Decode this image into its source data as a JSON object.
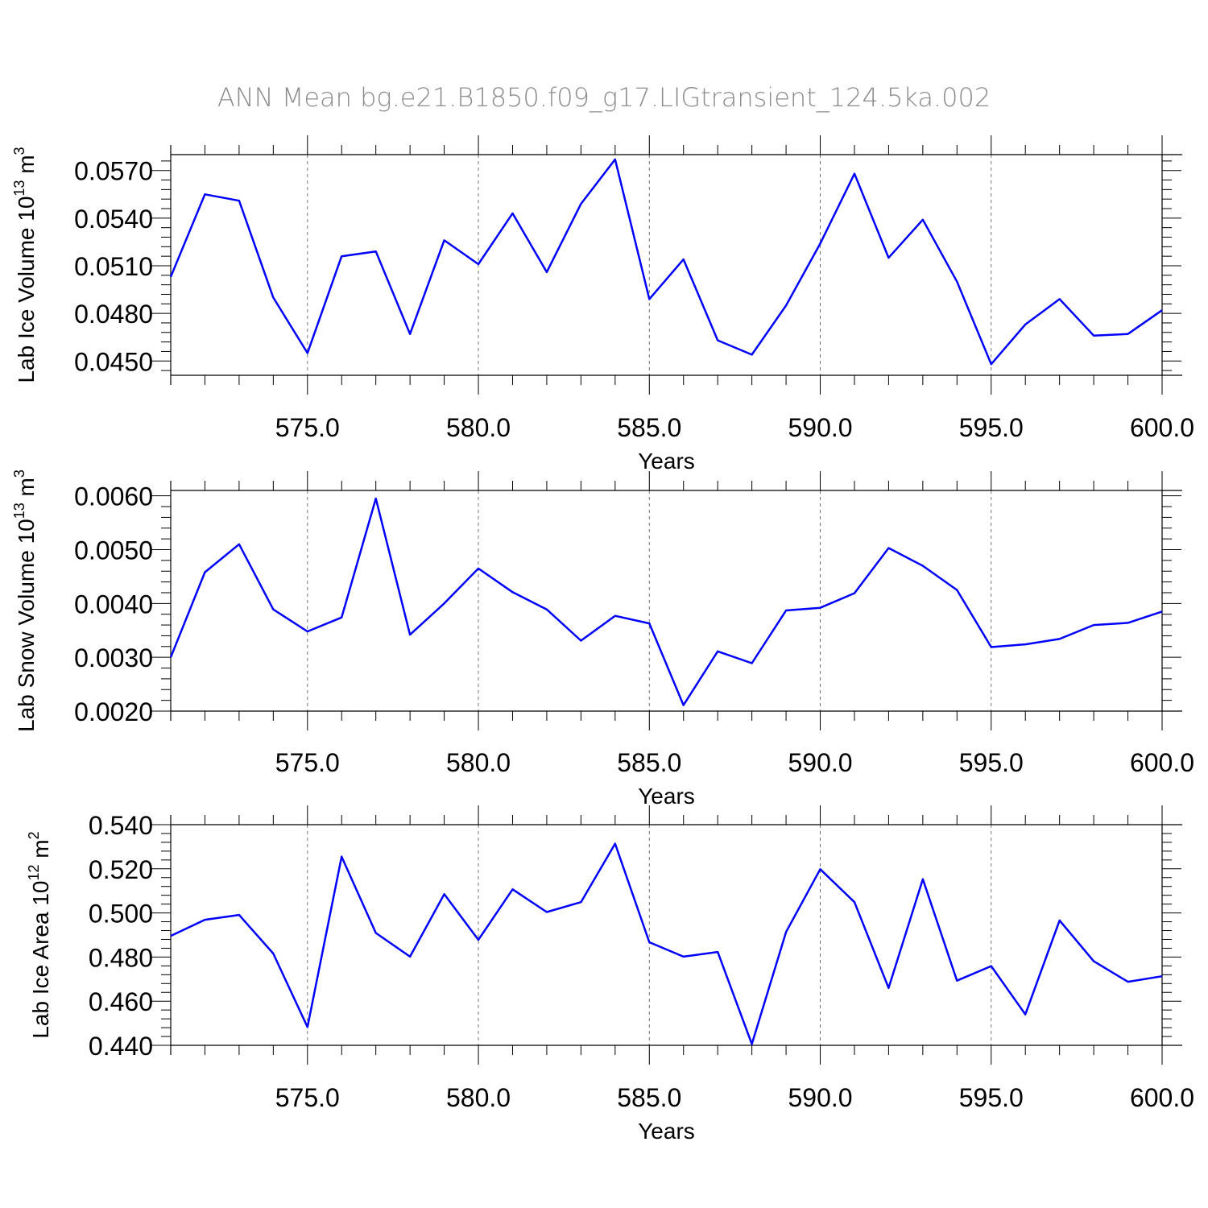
{
  "figure": {
    "title": "ANN Mean bg.e21.B1850.f09_g17.LIGtransient_124.5ka.002"
  },
  "colors": {
    "series": "#0000ff",
    "grid": "#777777",
    "title": "#8c8c8c"
  },
  "chart_data": [
    {
      "type": "line",
      "ylabel": "Lab Ice Volume 10",
      "ylabel_sup": "13",
      "ylabel_unit": " m",
      "ylabel_unit_sup": "3",
      "xlabel": "Years",
      "xlim": [
        571,
        600
      ],
      "ylim": [
        0.0441,
        0.058
      ],
      "xticks": [
        575,
        580,
        585,
        590,
        595,
        600
      ],
      "xtick_labels": [
        "575.0",
        "580.0",
        "585.0",
        "590.0",
        "595.0",
        "600.0"
      ],
      "yticks": [
        0.045,
        0.048,
        0.051,
        0.054,
        0.057
      ],
      "ytick_labels": [
        "0.0450",
        "0.0480",
        "0.0510",
        "0.0540",
        "0.0570"
      ],
      "grid": "vertical dashed at major x ticks",
      "series": [
        {
          "x": [
            571,
            572,
            573,
            574,
            575,
            576,
            577,
            578,
            579,
            580,
            581,
            582,
            583,
            584,
            585,
            586,
            587,
            588,
            589,
            590,
            591,
            592,
            593,
            594,
            595,
            596,
            597,
            598,
            599,
            600
          ],
          "values": [
            0.0503,
            0.0555,
            0.0551,
            0.049,
            0.0455,
            0.0516,
            0.0519,
            0.0467,
            0.0526,
            0.0511,
            0.0543,
            0.0506,
            0.0549,
            0.0577,
            0.0489,
            0.0514,
            0.0463,
            0.0454,
            0.0485,
            0.0524,
            0.0568,
            0.0515,
            0.0539,
            0.05,
            0.0448,
            0.0473,
            0.0489,
            0.0466,
            0.0467,
            0.0482
          ]
        }
      ]
    },
    {
      "type": "line",
      "ylabel": "Lab Snow Volume 10",
      "ylabel_sup": "13",
      "ylabel_unit": " m",
      "ylabel_unit_sup": "3",
      "xlabel": "Years",
      "xlim": [
        571,
        600
      ],
      "ylim": [
        0.002,
        0.0061
      ],
      "xticks": [
        575,
        580,
        585,
        590,
        595,
        600
      ],
      "xtick_labels": [
        "575.0",
        "580.0",
        "585.0",
        "590.0",
        "595.0",
        "600.0"
      ],
      "yticks": [
        0.002,
        0.003,
        0.004,
        0.005,
        0.006
      ],
      "ytick_labels": [
        "0.0020",
        "0.0030",
        "0.0040",
        "0.0050",
        "0.0060"
      ],
      "grid": "vertical dashed at major x ticks",
      "series": [
        {
          "x": [
            571,
            572,
            573,
            574,
            575,
            576,
            577,
            578,
            579,
            580,
            581,
            582,
            583,
            584,
            585,
            586,
            587,
            588,
            589,
            590,
            591,
            592,
            593,
            594,
            595,
            596,
            597,
            598,
            599,
            600
          ],
          "values": [
            0.003,
            0.00458,
            0.0051,
            0.00389,
            0.00348,
            0.00374,
            0.00595,
            0.00342,
            0.004,
            0.00465,
            0.00421,
            0.00389,
            0.00331,
            0.00377,
            0.00363,
            0.00211,
            0.00311,
            0.00289,
            0.00387,
            0.00392,
            0.00419,
            0.00503,
            0.0047,
            0.00425,
            0.00319,
            0.00324,
            0.00334,
            0.0036,
            0.00364,
            0.00385
          ]
        }
      ]
    },
    {
      "type": "line",
      "ylabel": "Lab Ice Area 10",
      "ylabel_sup": "12",
      "ylabel_unit": " m",
      "ylabel_unit_sup": "2",
      "xlabel": "Years",
      "xlim": [
        571,
        600
      ],
      "ylim": [
        0.44,
        0.54
      ],
      "xticks": [
        575,
        580,
        585,
        590,
        595,
        600
      ],
      "xtick_labels": [
        "575.0",
        "580.0",
        "585.0",
        "590.0",
        "595.0",
        "600.0"
      ],
      "yticks": [
        0.44,
        0.46,
        0.48,
        0.5,
        0.52,
        0.54
      ],
      "ytick_labels": [
        "0.440",
        "0.460",
        "0.480",
        "0.500",
        "0.520",
        "0.540"
      ],
      "grid": "vertical dashed at major x ticks",
      "series": [
        {
          "x": [
            571,
            572,
            573,
            574,
            575,
            576,
            577,
            578,
            579,
            580,
            581,
            582,
            583,
            584,
            585,
            586,
            587,
            588,
            589,
            590,
            591,
            592,
            593,
            594,
            595,
            596,
            597,
            598,
            599,
            600
          ],
          "values": [
            0.4896,
            0.4969,
            0.4991,
            0.4816,
            0.4483,
            0.5255,
            0.4909,
            0.4802,
            0.5085,
            0.4878,
            0.5107,
            0.5004,
            0.5049,
            0.5314,
            0.4867,
            0.4802,
            0.4823,
            0.4406,
            0.4914,
            0.5198,
            0.5049,
            0.466,
            0.5153,
            0.4693,
            0.4759,
            0.454,
            0.4966,
            0.4781,
            0.4688,
            0.4713
          ]
        }
      ]
    }
  ]
}
